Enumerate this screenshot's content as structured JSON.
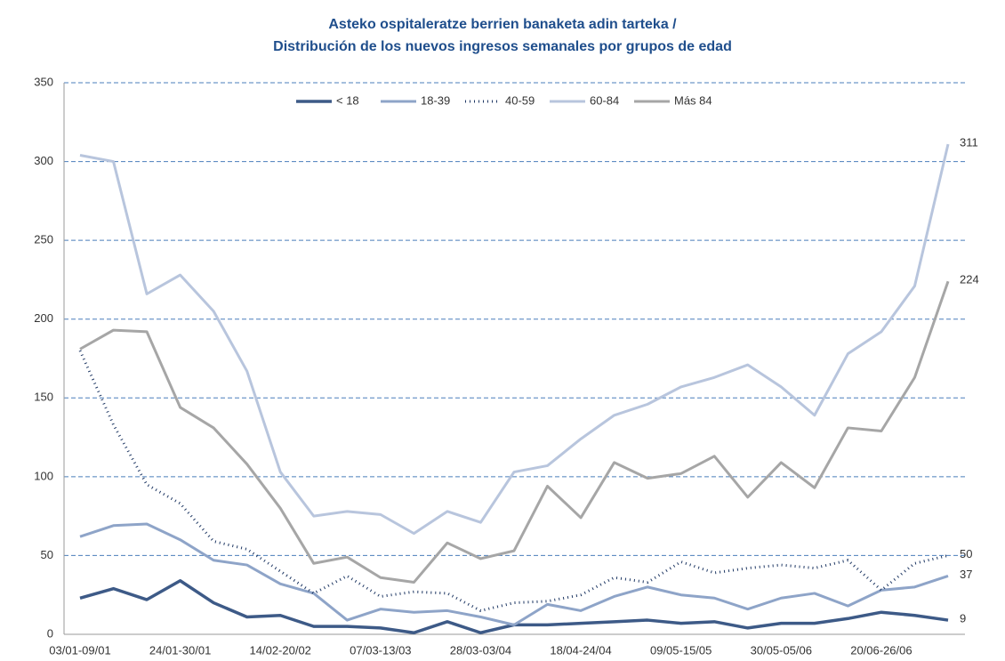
{
  "chart_data": {
    "type": "line",
    "title_lines": [
      "Asteko ospitaleratze berrien banaketa adin tarteka /",
      "Distribución de los nuevos ingresos semanales por grupos de edad"
    ],
    "categories": [
      "03/01-09/01",
      null,
      null,
      "24/01-30/01",
      null,
      null,
      "14/02-20/02",
      null,
      null,
      "07/03-13/03",
      null,
      null,
      "28/03-03/04",
      null,
      null,
      "18/04-24/04",
      null,
      null,
      "09/05-15/05",
      null,
      null,
      "30/05-05/06",
      null,
      null,
      "20/06-26/06",
      null,
      null
    ],
    "series": [
      {
        "name": "< 18",
        "color": "#3d5a87",
        "width": 3.5,
        "dash": "none",
        "values": [
          23,
          29,
          22,
          34,
          20,
          11,
          12,
          5,
          5,
          4,
          1,
          8,
          1,
          6,
          6,
          7,
          8,
          9,
          7,
          8,
          4,
          7,
          7,
          10,
          14,
          12,
          9
        ]
      },
      {
        "name": "18-39",
        "color": "#8ea4c8",
        "width": 3,
        "dash": "none",
        "values": [
          62,
          69,
          70,
          60,
          47,
          44,
          32,
          26,
          9,
          16,
          14,
          15,
          11,
          6,
          19,
          15,
          24,
          30,
          25,
          23,
          16,
          23,
          26,
          18,
          28,
          30,
          37
        ]
      },
      {
        "name": "40-59",
        "color": "#1f3864",
        "width": 3,
        "dash": "1 4",
        "values": [
          180,
          133,
          95,
          83,
          59,
          54,
          40,
          26,
          37,
          24,
          27,
          26,
          15,
          20,
          21,
          25,
          36,
          33,
          46,
          39,
          42,
          44,
          42,
          47,
          28,
          45,
          50
        ]
      },
      {
        "name": "60-84",
        "color": "#b8c5dd",
        "width": 3,
        "dash": "none",
        "values": [
          304,
          300,
          216,
          228,
          205,
          167,
          103,
          75,
          78,
          76,
          64,
          78,
          71,
          103,
          107,
          124,
          139,
          146,
          157,
          163,
          171,
          157,
          139,
          178,
          192,
          221,
          311
        ]
      },
      {
        "name": "Más 84",
        "color": "#a6a6a6",
        "width": 3,
        "dash": "none",
        "values": [
          181,
          193,
          192,
          144,
          131,
          108,
          80,
          45,
          49,
          36,
          33,
          58,
          48,
          53,
          94,
          74,
          109,
          99,
          102,
          113,
          87,
          109,
          93,
          131,
          129,
          163,
          224
        ]
      }
    ],
    "ylim": [
      0,
      350
    ],
    "yticks": [
      0,
      50,
      100,
      150,
      200,
      250,
      300,
      350
    ],
    "grid": true,
    "legend": "top"
  }
}
